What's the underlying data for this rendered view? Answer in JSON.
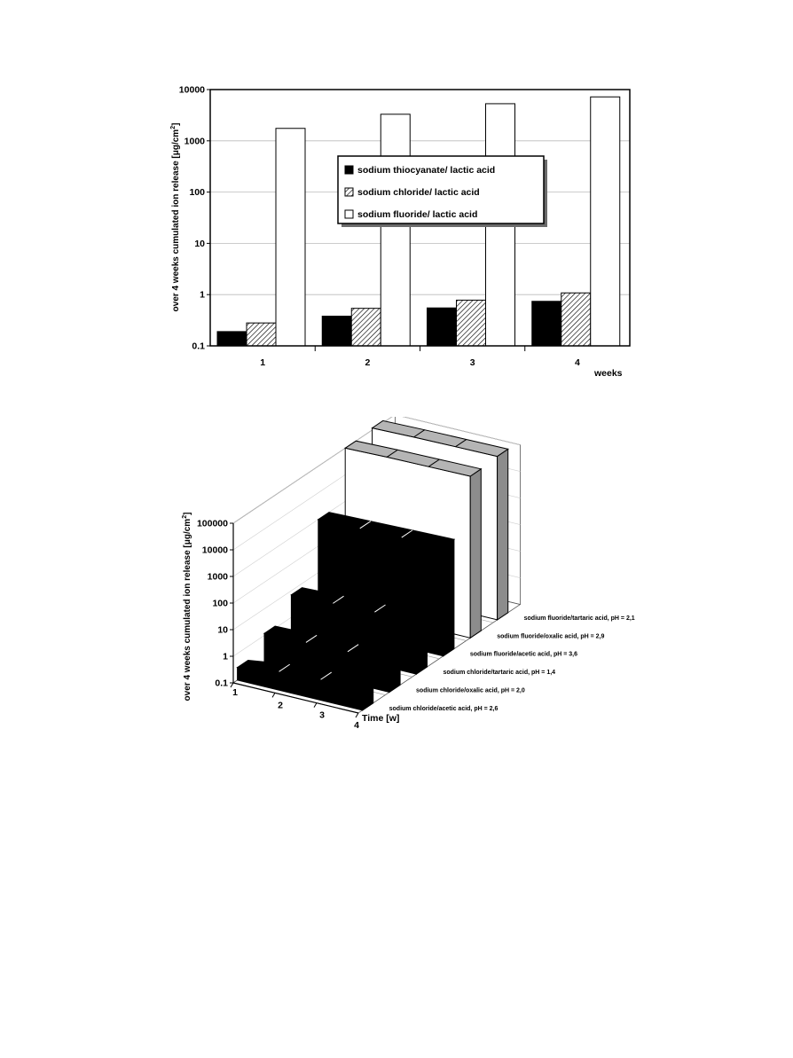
{
  "chart_data": [
    {
      "type": "bar",
      "scale": "log",
      "categories": [
        "1",
        "2",
        "3",
        "4"
      ],
      "xlabel": "weeks",
      "ylabel": "over 4 weeks cumulated ion release [μg/cm²]",
      "ylim": [
        0.1,
        10000
      ],
      "yticks": [
        "0.1",
        "1",
        "10",
        "100",
        "1000",
        "10000"
      ],
      "grid": true,
      "legend_position": "center",
      "series": [
        {
          "name": "sodium thiocyanate/ lactic acid",
          "values": [
            0.19,
            0.38,
            0.55,
            0.74
          ],
          "color": "#000000",
          "pattern": "solid"
        },
        {
          "name": "sodium chloride/ lactic acid",
          "values": [
            0.28,
            0.54,
            0.78,
            1.08
          ],
          "color": "#ffffff",
          "pattern": "hatched"
        },
        {
          "name": "sodium fluoride/ lactic acid",
          "values": [
            1750,
            3300,
            5300,
            7200
          ],
          "color": "#ffffff",
          "pattern": "open"
        }
      ]
    },
    {
      "type": "bar3d",
      "scale": "log",
      "x": [
        "1",
        "2",
        "3",
        "4"
      ],
      "xlabel": "Time [w]",
      "ylabel": "over 4 weeks cumulated ion release [μg/cm²]",
      "ylim": [
        0.1,
        100000
      ],
      "yticks": [
        "0.1",
        "1",
        "10",
        "100",
        "1000",
        "10000",
        "100000"
      ],
      "series": [
        {
          "name": "sodium chloride/acetic acid, pH = 2,6",
          "values": [
            0.3,
            0.5,
            0.6,
            0.7
          ],
          "color": "#000000"
        },
        {
          "name": "sodium chloride/oxalic acid, pH = 2,0",
          "values": [
            1.2,
            1.3,
            1.4,
            1.5
          ],
          "color": "#000000"
        },
        {
          "name": "sodium chloride/tartaric acid, pH = 1,4",
          "values": [
            7,
            8,
            9,
            10
          ],
          "color": "#000000"
        },
        {
          "name": "sodium fluoride/acetic acid, pH = 3,6",
          "values": [
            1000,
            1100,
            1200,
            1300
          ],
          "color": "#000000"
        },
        {
          "name": "sodium fluoride/oxalic acid, pH = 2,9",
          "values": [
            100000,
            110000,
            115000,
            120000
          ],
          "color": "#ffffff"
        },
        {
          "name": "sodium fluoride/tartaric acid, pH = 2,1",
          "values": [
            120000,
            130000,
            135000,
            140000
          ],
          "color": "#ffffff"
        }
      ]
    }
  ]
}
